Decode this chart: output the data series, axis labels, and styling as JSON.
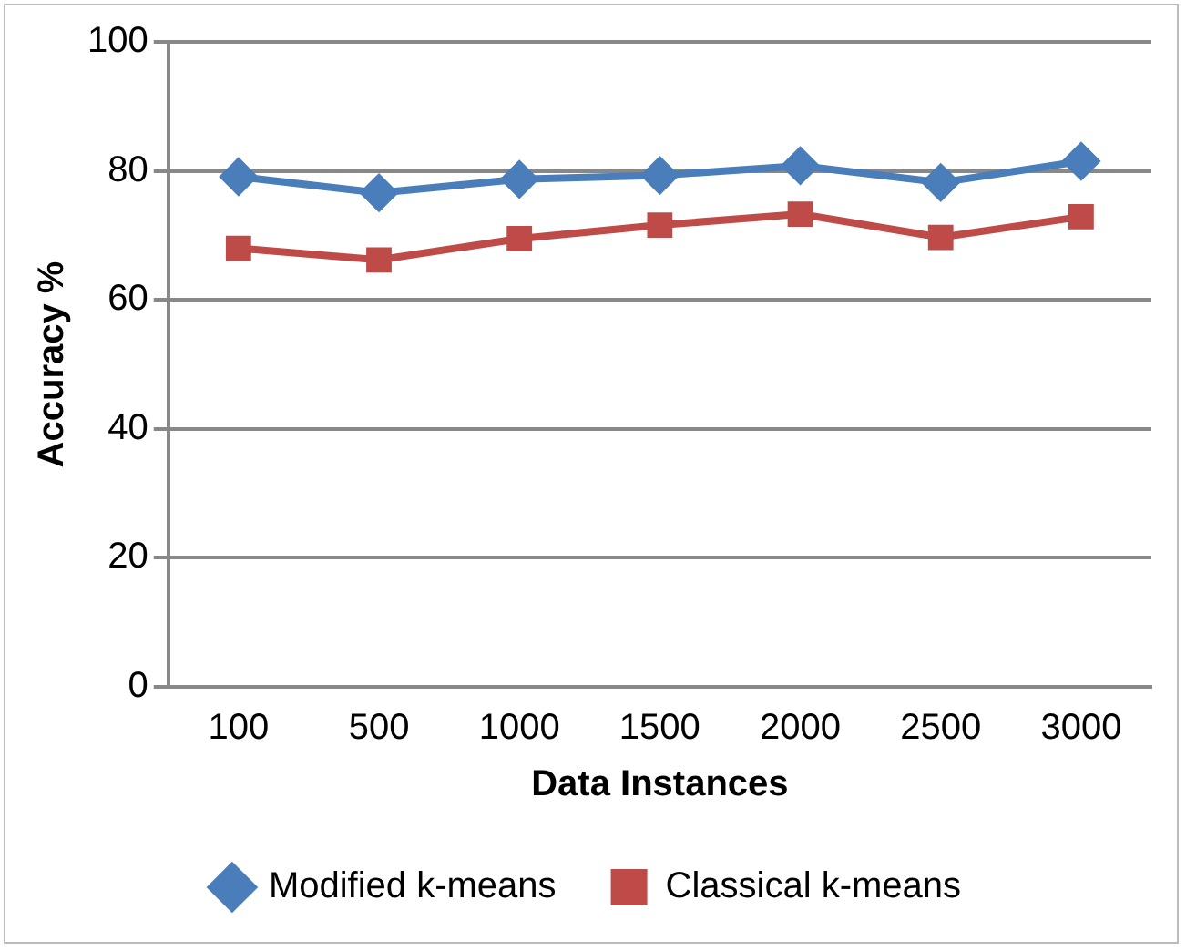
{
  "chart_data": {
    "type": "line",
    "xlabel": "Data Instances",
    "ylabel": "Accuracy %",
    "categories": [
      "100",
      "500",
      "1000",
      "1500",
      "2000",
      "2500",
      "3000"
    ],
    "series": [
      {
        "name": "Modified k-means",
        "color": "#4a7ebb",
        "marker": "diamond",
        "values": [
          79.1,
          76.6,
          78.7,
          79.3,
          80.8,
          78.2,
          81.5
        ]
      },
      {
        "name": "Classical k-means",
        "color": "#be4b48",
        "marker": "square",
        "values": [
          68.0,
          66.2,
          69.5,
          71.6,
          73.3,
          69.7,
          72.9
        ]
      }
    ],
    "ylim": [
      0,
      100
    ],
    "yticks": [
      0,
      20,
      40,
      60,
      80,
      100
    ],
    "grid": "y",
    "legend": "bottom"
  }
}
